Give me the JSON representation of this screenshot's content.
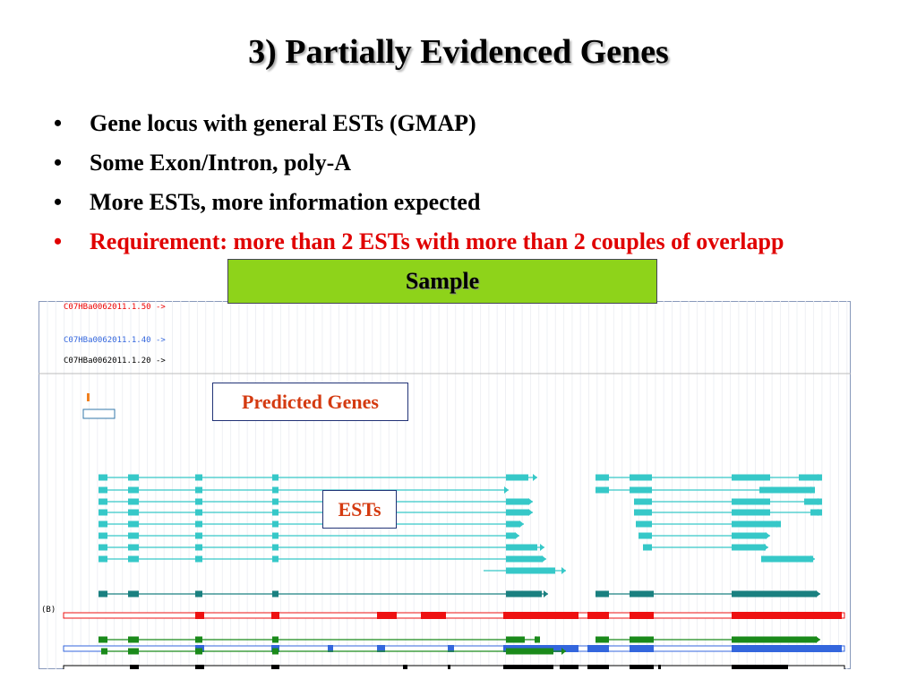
{
  "title": "3) Partially Evidenced Genes",
  "bullets": [
    "Gene locus with general ESTs (GMAP)",
    "Some Exon/Intron, poly-A",
    "More ESTs, more information expected",
    "Requirement: more than 2 ESTs with more than 2 couples of overlapp"
  ],
  "sample_label": "Sample",
  "predicted_label": "Predicted Genes",
  "ests_label": "ESTs",
  "tracks": [
    "C07HBa0062011.1.50 ->",
    "C07HBa0062011.1.40 ->",
    "C07HBa0062011.1.20 ->"
  ],
  "panel_label": "(B)"
}
